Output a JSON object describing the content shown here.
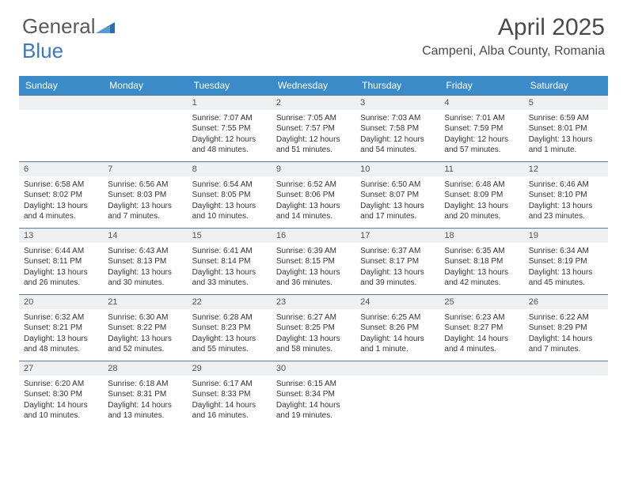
{
  "logo": {
    "text_general": "General",
    "text_blue": "Blue"
  },
  "header": {
    "month_title": "April 2025",
    "location": "Campeni, Alba County, Romania"
  },
  "colors": {
    "header_bg": "#3b8bc9",
    "header_text": "#ffffff",
    "daynum_bg": "#eef0f2",
    "cell_border": "#5b7a99",
    "body_text": "#333333",
    "logo_gray": "#5a5a5a",
    "logo_blue": "#3a7ab8"
  },
  "calendar": {
    "day_names": [
      "Sunday",
      "Monday",
      "Tuesday",
      "Wednesday",
      "Thursday",
      "Friday",
      "Saturday"
    ],
    "leading_blanks": 2,
    "trailing_blanks": 3,
    "days": [
      {
        "n": "1",
        "sunrise": "7:07 AM",
        "sunset": "7:55 PM",
        "daylight": "12 hours and 48 minutes."
      },
      {
        "n": "2",
        "sunrise": "7:05 AM",
        "sunset": "7:57 PM",
        "daylight": "12 hours and 51 minutes."
      },
      {
        "n": "3",
        "sunrise": "7:03 AM",
        "sunset": "7:58 PM",
        "daylight": "12 hours and 54 minutes."
      },
      {
        "n": "4",
        "sunrise": "7:01 AM",
        "sunset": "7:59 PM",
        "daylight": "12 hours and 57 minutes."
      },
      {
        "n": "5",
        "sunrise": "6:59 AM",
        "sunset": "8:01 PM",
        "daylight": "13 hours and 1 minute."
      },
      {
        "n": "6",
        "sunrise": "6:58 AM",
        "sunset": "8:02 PM",
        "daylight": "13 hours and 4 minutes."
      },
      {
        "n": "7",
        "sunrise": "6:56 AM",
        "sunset": "8:03 PM",
        "daylight": "13 hours and 7 minutes."
      },
      {
        "n": "8",
        "sunrise": "6:54 AM",
        "sunset": "8:05 PM",
        "daylight": "13 hours and 10 minutes."
      },
      {
        "n": "9",
        "sunrise": "6:52 AM",
        "sunset": "8:06 PM",
        "daylight": "13 hours and 14 minutes."
      },
      {
        "n": "10",
        "sunrise": "6:50 AM",
        "sunset": "8:07 PM",
        "daylight": "13 hours and 17 minutes."
      },
      {
        "n": "11",
        "sunrise": "6:48 AM",
        "sunset": "8:09 PM",
        "daylight": "13 hours and 20 minutes."
      },
      {
        "n": "12",
        "sunrise": "6:46 AM",
        "sunset": "8:10 PM",
        "daylight": "13 hours and 23 minutes."
      },
      {
        "n": "13",
        "sunrise": "6:44 AM",
        "sunset": "8:11 PM",
        "daylight": "13 hours and 26 minutes."
      },
      {
        "n": "14",
        "sunrise": "6:43 AM",
        "sunset": "8:13 PM",
        "daylight": "13 hours and 30 minutes."
      },
      {
        "n": "15",
        "sunrise": "6:41 AM",
        "sunset": "8:14 PM",
        "daylight": "13 hours and 33 minutes."
      },
      {
        "n": "16",
        "sunrise": "6:39 AM",
        "sunset": "8:15 PM",
        "daylight": "13 hours and 36 minutes."
      },
      {
        "n": "17",
        "sunrise": "6:37 AM",
        "sunset": "8:17 PM",
        "daylight": "13 hours and 39 minutes."
      },
      {
        "n": "18",
        "sunrise": "6:35 AM",
        "sunset": "8:18 PM",
        "daylight": "13 hours and 42 minutes."
      },
      {
        "n": "19",
        "sunrise": "6:34 AM",
        "sunset": "8:19 PM",
        "daylight": "13 hours and 45 minutes."
      },
      {
        "n": "20",
        "sunrise": "6:32 AM",
        "sunset": "8:21 PM",
        "daylight": "13 hours and 48 minutes."
      },
      {
        "n": "21",
        "sunrise": "6:30 AM",
        "sunset": "8:22 PM",
        "daylight": "13 hours and 52 minutes."
      },
      {
        "n": "22",
        "sunrise": "6:28 AM",
        "sunset": "8:23 PM",
        "daylight": "13 hours and 55 minutes."
      },
      {
        "n": "23",
        "sunrise": "6:27 AM",
        "sunset": "8:25 PM",
        "daylight": "13 hours and 58 minutes."
      },
      {
        "n": "24",
        "sunrise": "6:25 AM",
        "sunset": "8:26 PM",
        "daylight": "14 hours and 1 minute."
      },
      {
        "n": "25",
        "sunrise": "6:23 AM",
        "sunset": "8:27 PM",
        "daylight": "14 hours and 4 minutes."
      },
      {
        "n": "26",
        "sunrise": "6:22 AM",
        "sunset": "8:29 PM",
        "daylight": "14 hours and 7 minutes."
      },
      {
        "n": "27",
        "sunrise": "6:20 AM",
        "sunset": "8:30 PM",
        "daylight": "14 hours and 10 minutes."
      },
      {
        "n": "28",
        "sunrise": "6:18 AM",
        "sunset": "8:31 PM",
        "daylight": "14 hours and 13 minutes."
      },
      {
        "n": "29",
        "sunrise": "6:17 AM",
        "sunset": "8:33 PM",
        "daylight": "14 hours and 16 minutes."
      },
      {
        "n": "30",
        "sunrise": "6:15 AM",
        "sunset": "8:34 PM",
        "daylight": "14 hours and 19 minutes."
      }
    ],
    "labels": {
      "sunrise": "Sunrise:",
      "sunset": "Sunset:",
      "daylight": "Daylight:"
    }
  }
}
